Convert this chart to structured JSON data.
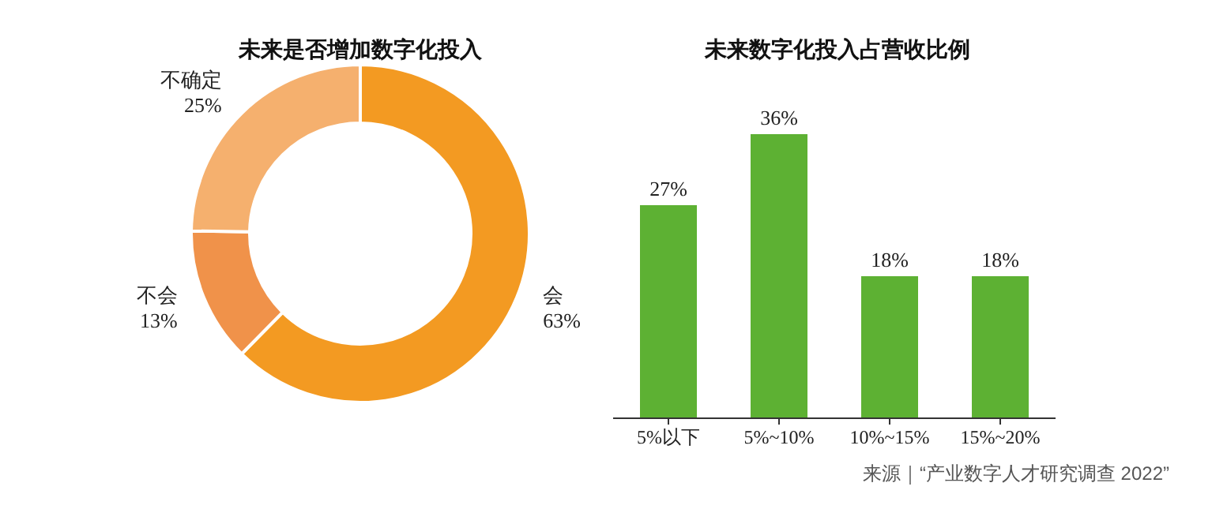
{
  "chart_data": [
    {
      "type": "donut",
      "title": "未来是否增加数字化投入",
      "categories": [
        "会",
        "不会",
        "不确定"
      ],
      "values": [
        63,
        13,
        25
      ],
      "value_labels": [
        "63%",
        "13%",
        "25%"
      ],
      "colors": [
        "#f39a22",
        "#f0924a",
        "#f5b06e"
      ]
    },
    {
      "type": "bar",
      "title": "未来数字化投入占营收比例",
      "categories": [
        "5%以下",
        "5%~10%",
        "10%~15%",
        "15%~20%"
      ],
      "values": [
        27,
        36,
        18,
        18
      ],
      "color": "#5db133",
      "value_labels": [
        "27%",
        "36%",
        "18%",
        "18%"
      ],
      "annotations": [
        "来源｜“产业数字人才研究调查 2022”"
      ]
    }
  ]
}
